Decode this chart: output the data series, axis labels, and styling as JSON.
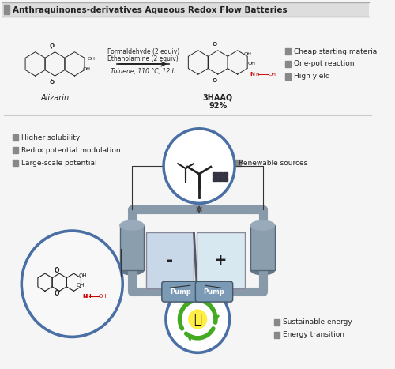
{
  "title": "Anthraquinones-derivatives Aqueous Redox Flow Batteries",
  "background_color": "#f5f5f5",
  "title_bar_color": "#8a8a8a",
  "title_text_color": "#222222",
  "reaction_conditions_line1": "Formaldehyde (2 equiv)",
  "reaction_conditions_line2": "Ethanolamine (2 equiv)",
  "reaction_conditions_line3": "Toluene, 110 °C, 12 h",
  "reactant_label": "Alizarin",
  "product_label": "3HAAQ",
  "product_yield": "92%",
  "right_bullets": [
    "Cheap starting material",
    "One-pot reaction",
    "High yield"
  ],
  "left_bullets": [
    "Higher solubility",
    "Redox potential modulation",
    "Large-scale potential"
  ],
  "bottom_right_bullets": [
    "Sustainable energy",
    "Energy transition"
  ],
  "renewable_label": "Renewable sources",
  "pump_label": "Pump",
  "negative_label": "-",
  "positive_label": "+",
  "bullet_color": "#888888",
  "arrow_color": "#333333",
  "red_color": "#cc0000",
  "blue_circle_color": "#4a6fa5",
  "tank_color": "#8899aa",
  "battery_color": "#aabbcc",
  "pipe_color": "#8899aa",
  "pump_box_color": "#7a9ab5"
}
